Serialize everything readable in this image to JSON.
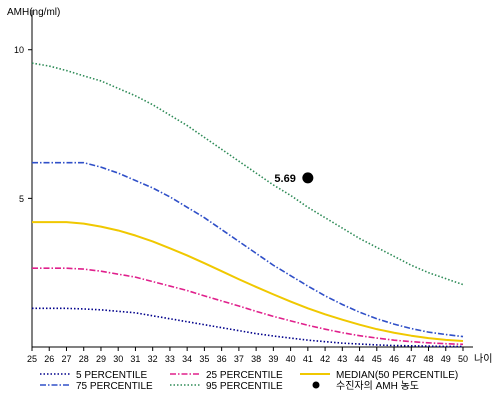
{
  "chart_data": {
    "type": "line",
    "ylabel": "AMH(ng/ml)",
    "xlabel": "나이",
    "xlim": [
      25,
      50
    ],
    "ylim": [
      0,
      11
    ],
    "y_ticks": [
      5,
      10
    ],
    "x": [
      25,
      26,
      27,
      28,
      29,
      30,
      31,
      32,
      33,
      34,
      35,
      36,
      37,
      38,
      39,
      40,
      41,
      42,
      43,
      44,
      45,
      46,
      47,
      48,
      49,
      50
    ],
    "series": [
      {
        "name": "5 PERCENTILE",
        "color": "#00008b",
        "style": "dotted",
        "values": [
          1.3,
          1.3,
          1.3,
          1.28,
          1.25,
          1.2,
          1.15,
          1.05,
          0.95,
          0.85,
          0.75,
          0.65,
          0.55,
          0.45,
          0.37,
          0.3,
          0.23,
          0.18,
          0.13,
          0.1,
          0.07,
          0.05,
          0.04,
          0.03,
          0.02,
          0.02
        ]
      },
      {
        "name": "75 PERCENTILE",
        "color": "#3050c8",
        "style": "dashdot",
        "values": [
          6.2,
          6.2,
          6.2,
          6.2,
          6.05,
          5.85,
          5.6,
          5.35,
          5.05,
          4.7,
          4.35,
          3.95,
          3.55,
          3.15,
          2.75,
          2.4,
          2.05,
          1.72,
          1.43,
          1.17,
          0.95,
          0.77,
          0.62,
          0.5,
          0.42,
          0.35
        ]
      },
      {
        "name": "25 PERCENTILE",
        "color": "#e0208c",
        "style": "dashdot",
        "values": [
          2.65,
          2.65,
          2.65,
          2.62,
          2.55,
          2.45,
          2.35,
          2.2,
          2.05,
          1.9,
          1.72,
          1.55,
          1.38,
          1.2,
          1.03,
          0.88,
          0.73,
          0.6,
          0.48,
          0.38,
          0.3,
          0.23,
          0.18,
          0.14,
          0.11,
          0.09
        ]
      },
      {
        "name": "95 PERCENTILE",
        "color": "#2e8b57",
        "style": "dotted",
        "values": [
          9.55,
          9.45,
          9.3,
          9.12,
          8.95,
          8.7,
          8.45,
          8.15,
          7.8,
          7.45,
          7.05,
          6.65,
          6.25,
          5.85,
          5.45,
          5.1,
          4.7,
          4.35,
          4.0,
          3.65,
          3.35,
          3.05,
          2.75,
          2.5,
          2.3,
          2.1
        ]
      },
      {
        "name": "MEDIAN(50 PERCENTILE)",
        "color": "#f0c800",
        "style": "solid",
        "values": [
          4.2,
          4.2,
          4.2,
          4.15,
          4.05,
          3.92,
          3.75,
          3.55,
          3.32,
          3.08,
          2.82,
          2.55,
          2.28,
          2.02,
          1.77,
          1.53,
          1.3,
          1.1,
          0.92,
          0.75,
          0.6,
          0.48,
          0.38,
          0.3,
          0.24,
          0.2
        ]
      }
    ],
    "patient": {
      "name": "수진자의 AMH 농도",
      "x": 41,
      "y": 5.69,
      "label": "5.69",
      "color": "#000000"
    },
    "legend": {
      "placement": "bottom",
      "entries": [
        {
          "label": "5 PERCENTILE",
          "series": 0
        },
        {
          "label": "25 PERCENTILE",
          "series": 2
        },
        {
          "label": "MEDIAN(50 PERCENTILE)",
          "series": 4
        },
        {
          "label": "75 PERCENTILE",
          "series": 1
        },
        {
          "label": "95 PERCENTILE",
          "series": 3
        },
        {
          "label": "수진자의 AMH 농도",
          "marker": "patient"
        }
      ]
    }
  }
}
